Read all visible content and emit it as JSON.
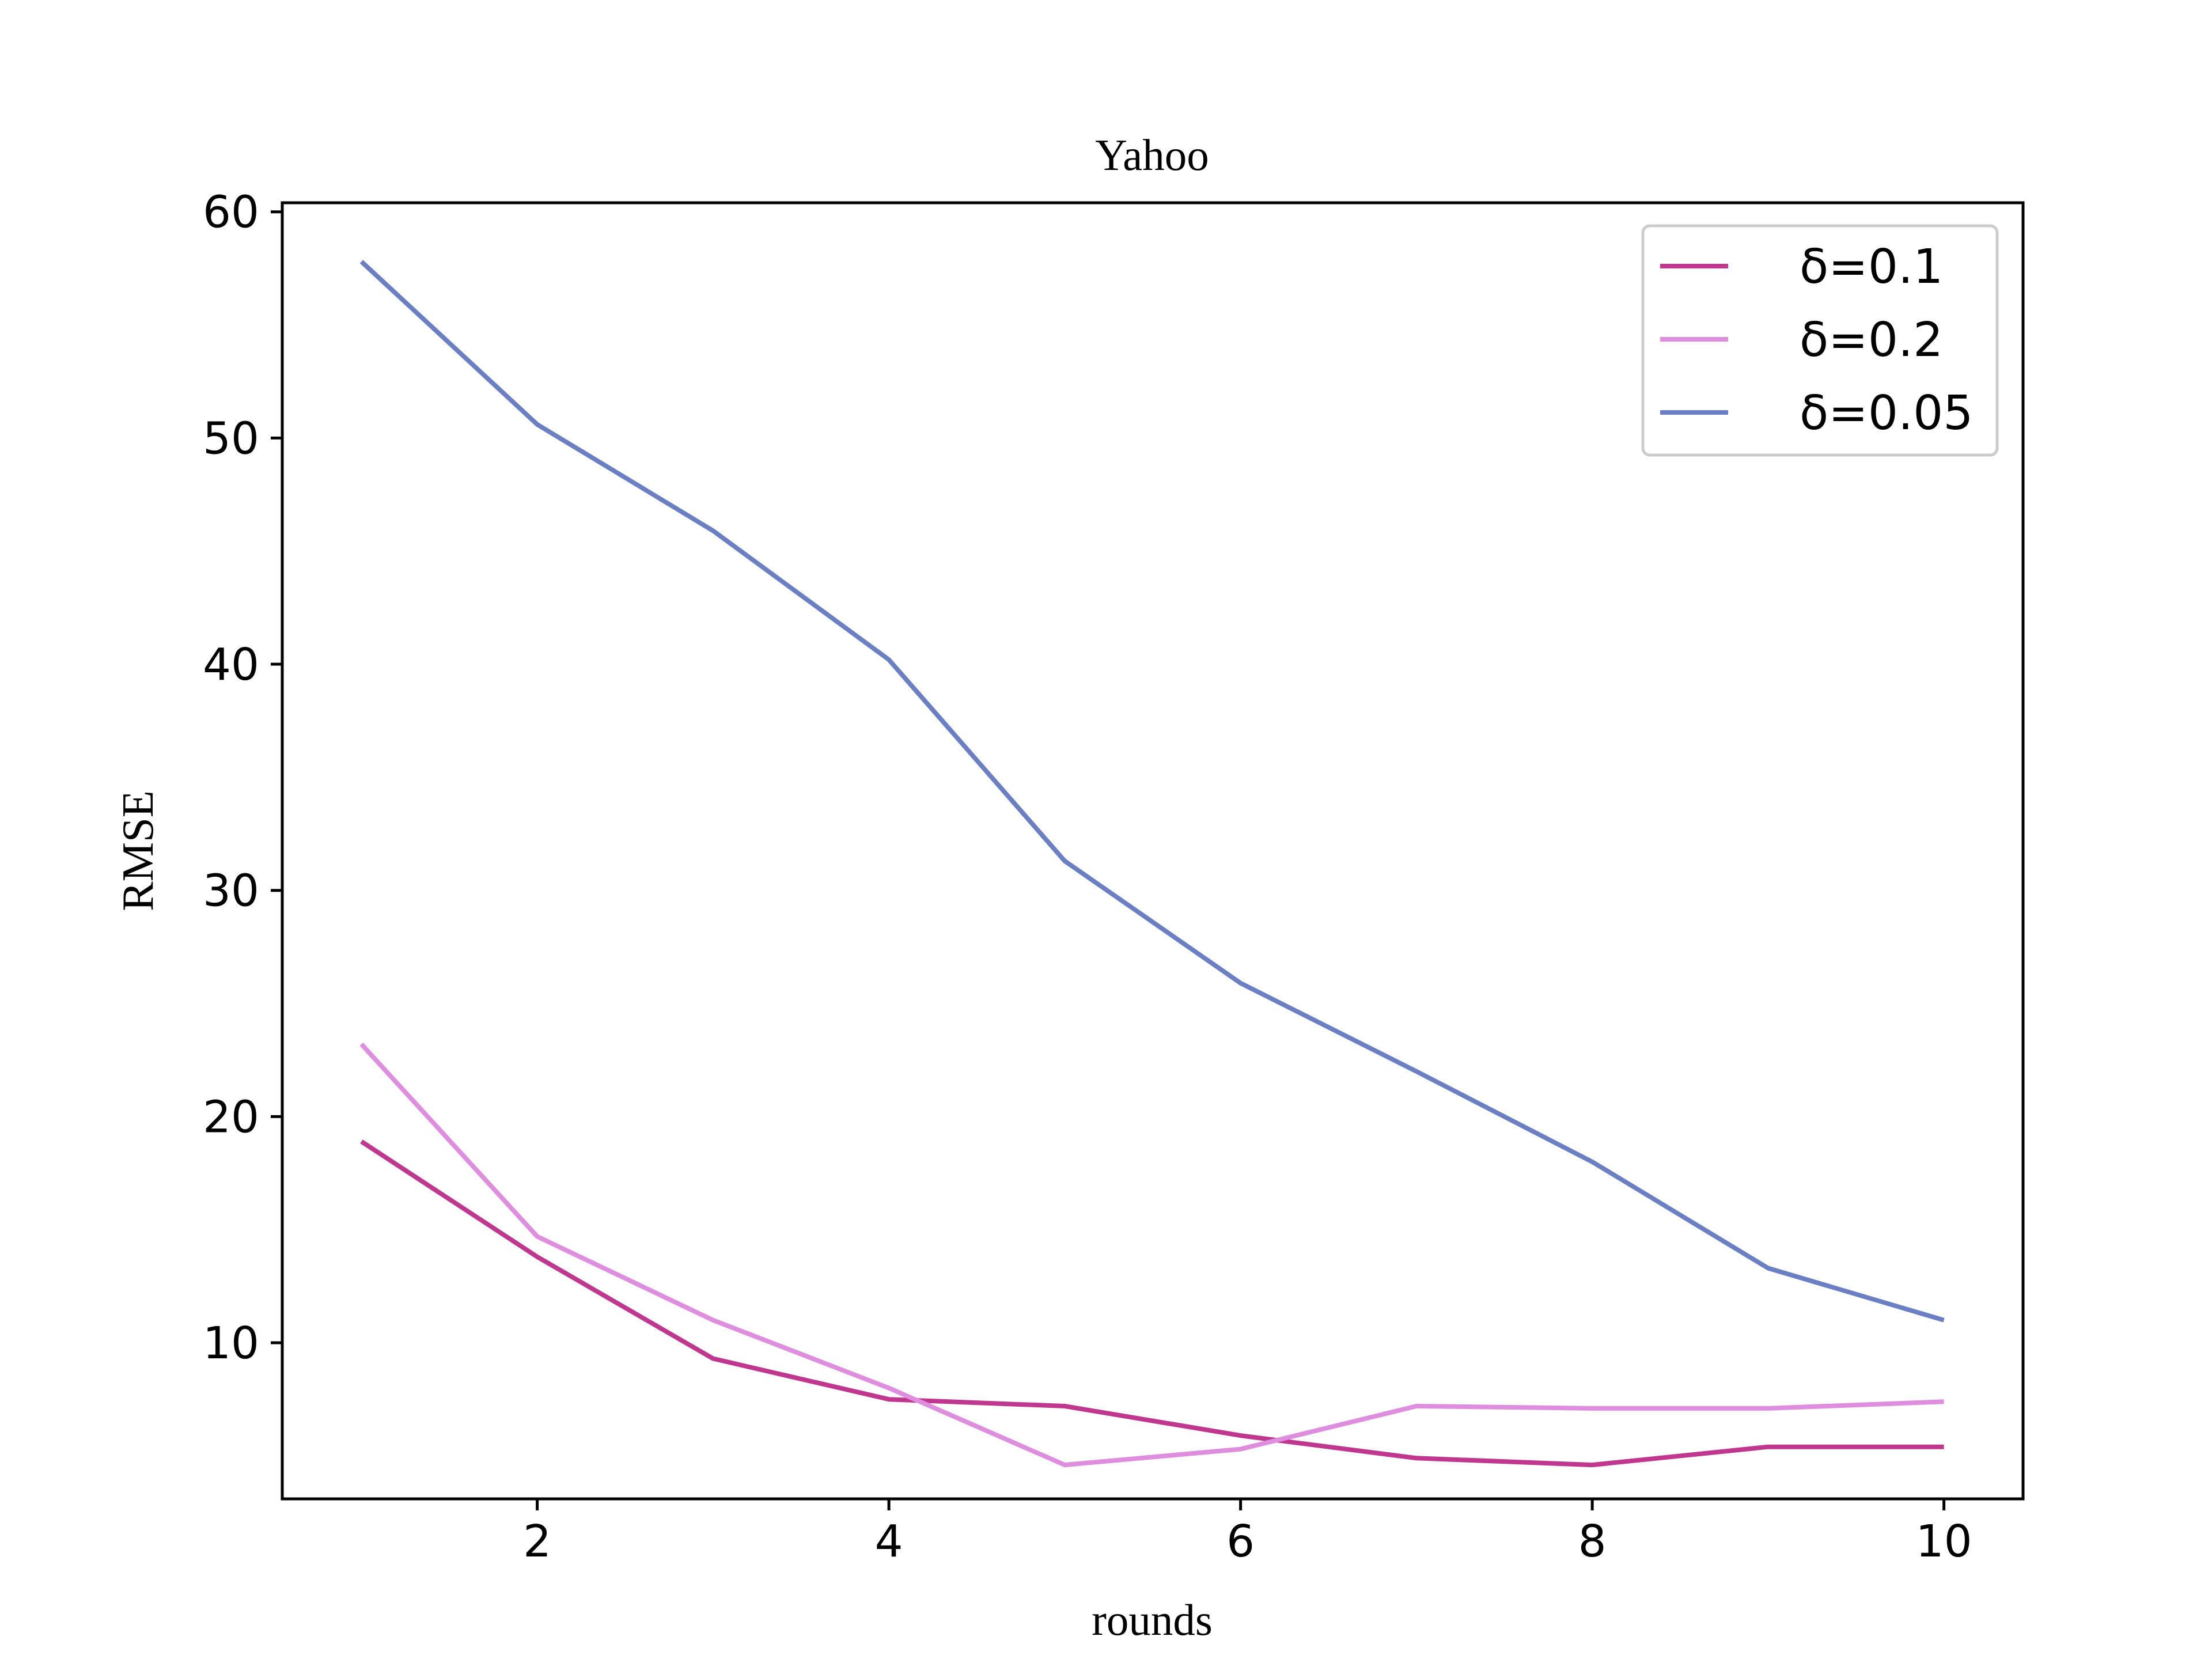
{
  "chart_data": {
    "type": "line",
    "title": "Yahoo",
    "xlabel": "rounds",
    "ylabel": "RMSE",
    "x": [
      1,
      2,
      3,
      4,
      5,
      6,
      7,
      8,
      9,
      10
    ],
    "xlim": [
      0.55,
      10.45
    ],
    "ylim": [
      3.1,
      60.4
    ],
    "xticks": [
      2,
      4,
      6,
      8,
      10
    ],
    "yticks": [
      10,
      20,
      30,
      40,
      50,
      60
    ],
    "grid": false,
    "legend_position": "top-right",
    "series": [
      {
        "name": "δ=0.1",
        "color": "#c0378f",
        "values": [
          18.9,
          13.8,
          9.3,
          7.5,
          7.2,
          5.9,
          4.9,
          4.6,
          5.4,
          5.4
        ]
      },
      {
        "name": "δ=0.2",
        "color": "#df8ddf",
        "values": [
          23.2,
          14.7,
          11.0,
          8.0,
          4.6,
          5.3,
          7.2,
          7.1,
          7.1,
          7.4
        ]
      },
      {
        "name": "δ=0.05",
        "color": "#6a7fc4",
        "values": [
          57.8,
          50.6,
          45.9,
          40.2,
          31.3,
          25.9,
          22.0,
          18.0,
          13.3,
          11.0
        ]
      }
    ]
  }
}
